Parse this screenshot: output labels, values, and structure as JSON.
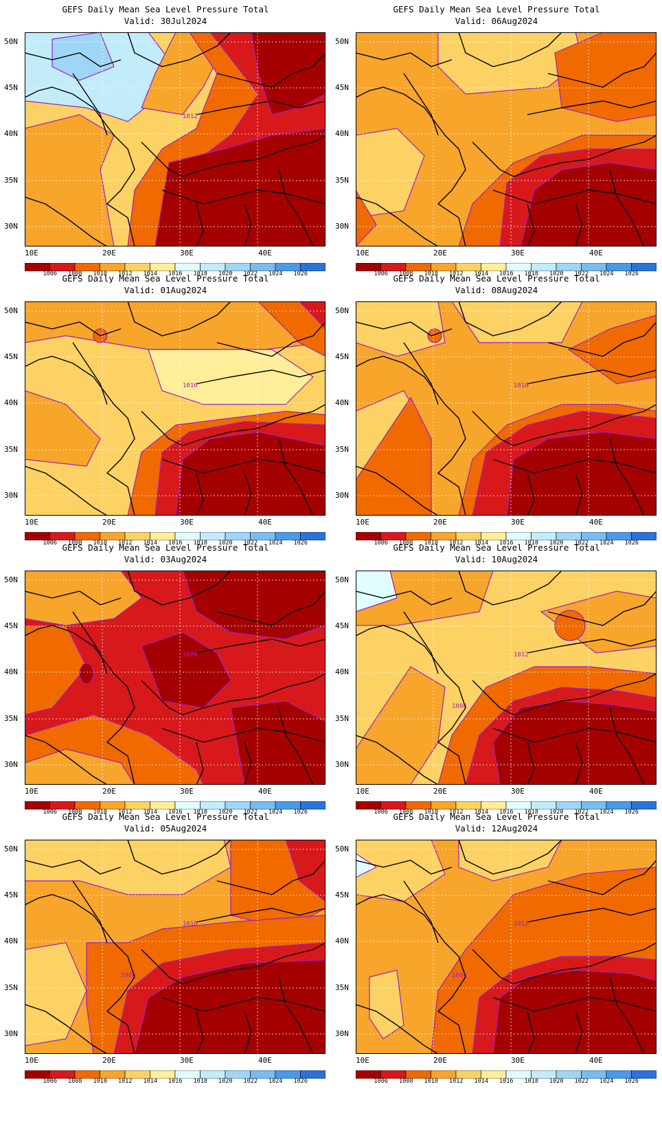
{
  "page": {
    "panels": [
      {
        "title": "GEFS Daily Mean Sea Level Pressure Total",
        "valid": "Valid: 30Jul2024",
        "contour_labels": [
          "1012"
        ],
        "scheme": 0
      },
      {
        "title": "GEFS Daily Mean Sea Level Pressure Total",
        "valid": "Valid: 06Aug2024",
        "contour_labels": [],
        "scheme": 1
      },
      {
        "title": "GEFS Daily Mean Sea Level Pressure Total",
        "valid": "Valid: 01Aug2024",
        "contour_labels": [
          "1010"
        ],
        "scheme": 2
      },
      {
        "title": "GEFS Daily Mean Sea Level Pressure Total",
        "valid": "Valid: 08Aug2024",
        "contour_labels": [
          "1010"
        ],
        "scheme": 3
      },
      {
        "title": "GEFS Daily Mean Sea Level Pressure Total",
        "valid": "Valid: 03Aug2024",
        "contour_labels": [
          "1008"
        ],
        "scheme": 4
      },
      {
        "title": "GEFS Daily Mean Sea Level Pressure Total",
        "valid": "Valid: 10Aug2024",
        "contour_labels": [
          "1012",
          "1008"
        ],
        "scheme": 5
      },
      {
        "title": "GEFS Daily Mean Sea Level Pressure Total",
        "valid": "Valid: 05Aug2024",
        "contour_labels": [
          "1010",
          "1008"
        ],
        "scheme": 6
      },
      {
        "title": "GEFS Daily Mean Sea Level Pressure Total",
        "valid": "Valid: 12Aug2024",
        "contour_labels": [
          "1012",
          "1008"
        ],
        "scheme": 7
      }
    ],
    "y_ticks": [
      "50N",
      "45N",
      "40N",
      "35N",
      "30N"
    ],
    "x_ticks": [
      "10E",
      "20E",
      "30E",
      "40E"
    ],
    "colorbar_labels": [
      "1006",
      "1008",
      "1010",
      "1012",
      "1014",
      "1016",
      "1018",
      "1020",
      "1022",
      "1024",
      "1026"
    ],
    "colorbar_colors": [
      "#a50000",
      "#d7191c",
      "#f06a00",
      "#f7a52b",
      "#fdd264",
      "#ffee99",
      "#e0fdff",
      "#c2ecfa",
      "#9fd6f5",
      "#78bdf0",
      "#4a9ae8",
      "#2a73d9"
    ]
  }
}
